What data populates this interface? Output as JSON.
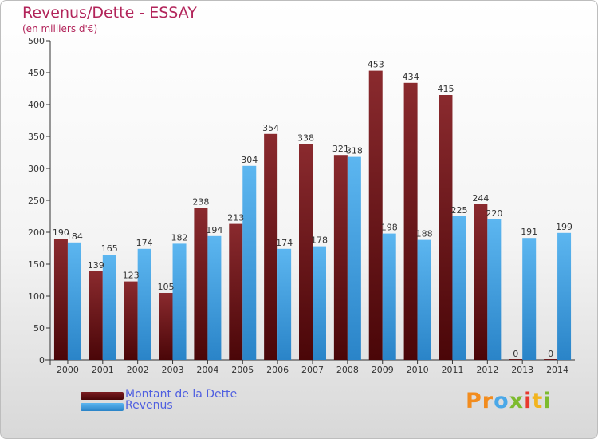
{
  "header": {
    "title": "Revenus/Dette - ESSAY",
    "subtitle": "(en milliers d'€)"
  },
  "chart_data": {
    "type": "bar",
    "title": "Revenus/Dette - ESSAY",
    "subtitle": "(en milliers d'€)",
    "categories": [
      "2000",
      "2001",
      "2002",
      "2003",
      "2004",
      "2005",
      "2006",
      "2007",
      "2008",
      "2009",
      "2010",
      "2011",
      "2012",
      "2013",
      "2014"
    ],
    "series": [
      {
        "name": "Montant de la Dette",
        "color": "#7a1c20",
        "values": [
          190,
          139,
          123,
          105,
          238,
          213,
          354,
          338,
          321,
          453,
          434,
          415,
          244,
          0,
          0
        ]
      },
      {
        "name": "Revenus",
        "color": "#3e9fe3",
        "values": [
          184,
          165,
          174,
          182,
          194,
          304,
          174,
          178,
          318,
          198,
          188,
          225,
          220,
          191,
          199
        ]
      }
    ],
    "ylim": [
      0,
      500
    ],
    "yticks": [
      0,
      50,
      100,
      150,
      200,
      250,
      300,
      350,
      400,
      450,
      500
    ],
    "grid": false,
    "legend_position": "bottom-left"
  },
  "legend": [
    {
      "label": "Montant de la Dette",
      "color": "#7a1c20"
    },
    {
      "label": "Revenus",
      "color": "#3e9fe3"
    }
  ],
  "logo": {
    "text": "Proxiti",
    "letters": [
      {
        "ch": "P",
        "color": "#f28c1e"
      },
      {
        "ch": "r",
        "color": "#f28c1e"
      },
      {
        "ch": "o",
        "color": "#4aa8e8"
      },
      {
        "ch": "x",
        "color": "#7dbb2e"
      },
      {
        "ch": "i",
        "color": "#e8382e"
      },
      {
        "ch": "t",
        "color": "#f2b41e"
      },
      {
        "ch": "i",
        "color": "#7dbb2e"
      }
    ]
  }
}
